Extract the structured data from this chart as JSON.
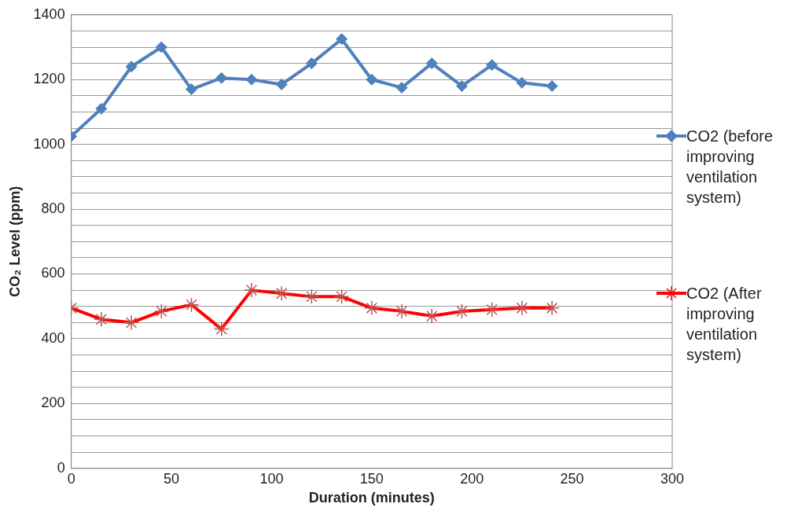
{
  "chart_data": {
    "type": "line",
    "xlabel": "Duration (minutes)",
    "ylabel": "CO₂ Level (ppm)",
    "x": [
      0,
      15,
      30,
      45,
      60,
      75,
      90,
      105,
      120,
      135,
      150,
      165,
      180,
      195,
      210,
      225,
      240
    ],
    "series": [
      {
        "name": "CO2 (before improving ventilation system)",
        "color": "#4f81bd",
        "marker": "diamond",
        "values": [
          1025,
          1110,
          1240,
          1300,
          1170,
          1205,
          1200,
          1185,
          1250,
          1325,
          1200,
          1175,
          1250,
          1180,
          1245,
          1190,
          1180
        ]
      },
      {
        "name": "CO2 (After improving ventilation system)",
        "color": "#ff0000",
        "marker": "cross",
        "values": [
          495,
          460,
          450,
          485,
          505,
          430,
          550,
          540,
          530,
          530,
          495,
          485,
          470,
          485,
          490,
          495,
          495
        ]
      }
    ],
    "xlim": [
      0,
      300
    ],
    "xticks": [
      0,
      50,
      100,
      150,
      200,
      250,
      300
    ],
    "ylim": [
      0,
      1400
    ],
    "yticks": [
      0,
      {
        "value": 50,
        "label": null
      },
      200,
      {
        "value": 250,
        "label": null
      },
      400,
      {
        "value": 450,
        "label": null
      },
      600,
      {
        "value": 650,
        "label": null
      },
      800,
      {
        "value": 850,
        "label": null
      },
      1000,
      {
        "value": 1050,
        "label": null
      },
      1200,
      {
        "value": 1250,
        "label": null
      },
      1400,
      {
        "value": 100,
        "label": null
      },
      {
        "value": 150,
        "label": null
      },
      {
        "value": 300,
        "label": null
      },
      {
        "value": 350,
        "label": null
      },
      {
        "value": 500,
        "label": null
      },
      {
        "value": 550,
        "label": null
      },
      {
        "value": 700,
        "label": null
      },
      {
        "value": 750,
        "label": null
      },
      {
        "value": 900,
        "label": null
      },
      {
        "value": 950,
        "label": null
      },
      {
        "value": 1100,
        "label": null
      },
      {
        "value": 1150,
        "label": null
      },
      {
        "value": 1300,
        "label": null
      },
      {
        "value": 1350,
        "label": null
      }
    ],
    "grid": "y",
    "legend": "right"
  }
}
